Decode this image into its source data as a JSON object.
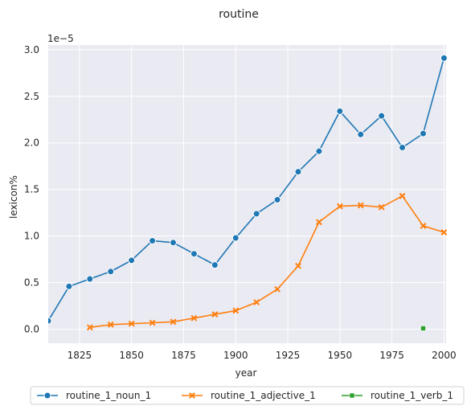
{
  "chart_data": {
    "type": "line",
    "title": "routine",
    "xlabel": "year",
    "ylabel": "lexicon%",
    "y_offset_label": "1e−5",
    "xlim": [
      1810,
      2001
    ],
    "ylim": [
      -0.15,
      3.05
    ],
    "x_ticks": [
      1825,
      1850,
      1875,
      1900,
      1925,
      1950,
      1975,
      2000
    ],
    "x_tick_labels": [
      "1825",
      "1850",
      "1875",
      "1900",
      "1925",
      "1950",
      "1975",
      "2000"
    ],
    "y_ticks": [
      0.0,
      0.5,
      1.0,
      1.5,
      2.0,
      2.5,
      3.0
    ],
    "y_tick_labels": [
      "0.0",
      "0.5",
      "1.0",
      "1.5",
      "2.0",
      "2.5",
      "3.0"
    ],
    "grid": true,
    "legend_position": "bottom",
    "series": [
      {
        "name": "routine_1_noun_1",
        "color": "#1f77b4",
        "marker": "circle",
        "x": [
          1810,
          1820,
          1830,
          1840,
          1850,
          1860,
          1870,
          1880,
          1890,
          1900,
          1910,
          1920,
          1930,
          1940,
          1950,
          1960,
          1970,
          1980,
          1990,
          2000
        ],
        "y": [
          0.09,
          0.46,
          0.54,
          0.62,
          0.74,
          0.95,
          0.93,
          0.81,
          0.69,
          0.98,
          1.24,
          1.39,
          1.69,
          1.91,
          2.34,
          2.09,
          2.29,
          1.95,
          2.1,
          2.91
        ]
      },
      {
        "name": "routine_1_adjective_1",
        "color": "#ff7f0e",
        "marker": "x",
        "x": [
          1830,
          1840,
          1850,
          1860,
          1870,
          1880,
          1890,
          1900,
          1910,
          1920,
          1930,
          1940,
          1950,
          1960,
          1970,
          1980,
          1990,
          2000
        ],
        "y": [
          0.02,
          0.05,
          0.06,
          0.07,
          0.08,
          0.12,
          0.16,
          0.2,
          0.29,
          0.43,
          0.68,
          1.15,
          1.32,
          1.33,
          1.31,
          1.43,
          1.11,
          1.04
        ]
      },
      {
        "name": "routine_1_verb_1",
        "color": "#2ca02c",
        "marker": "square",
        "x": [
          1990
        ],
        "y": [
          0.01
        ]
      }
    ]
  }
}
